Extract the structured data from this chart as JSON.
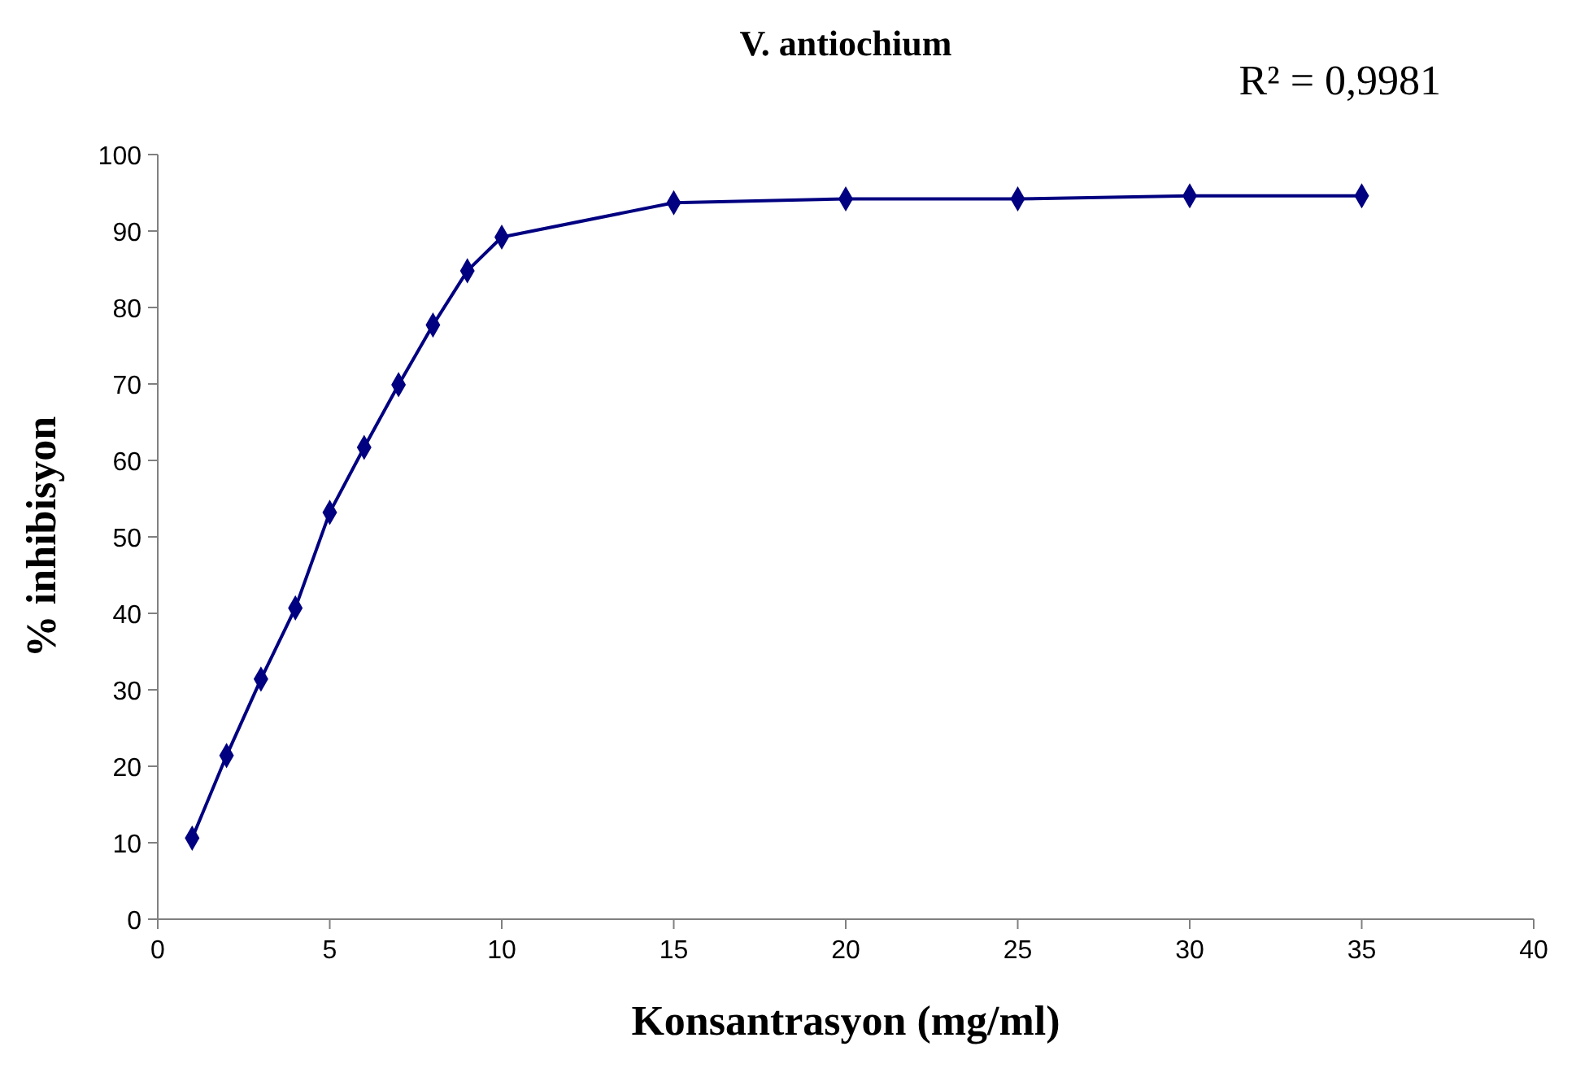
{
  "chart_data": {
    "type": "line",
    "title": "V. antiochium",
    "xlabel": "Konsantrasyon (mg/ml)",
    "ylabel": "% inhibisyon",
    "annotations": [
      "R² = 0,9981"
    ],
    "x": [
      1,
      2,
      3,
      4,
      5,
      6,
      7,
      8,
      9,
      10,
      15,
      20,
      25,
      30,
      35
    ],
    "series": [
      {
        "color": "#000080",
        "values": [
          10.6,
          21.4,
          31.4,
          40.7,
          53.2,
          61.7,
          69.9,
          77.7,
          84.8,
          89.2,
          93.7,
          94.2,
          94.2,
          94.6,
          94.6
        ]
      }
    ],
    "xlim": [
      0,
      40
    ],
    "xticks": [
      0,
      5,
      10,
      15,
      20,
      25,
      30,
      35,
      40
    ],
    "ylim": [
      0,
      100
    ],
    "yticks": [
      0,
      10,
      20,
      30,
      40,
      50,
      60,
      70,
      80,
      90,
      100
    ],
    "marker": "diamond",
    "line_style": "solid"
  }
}
